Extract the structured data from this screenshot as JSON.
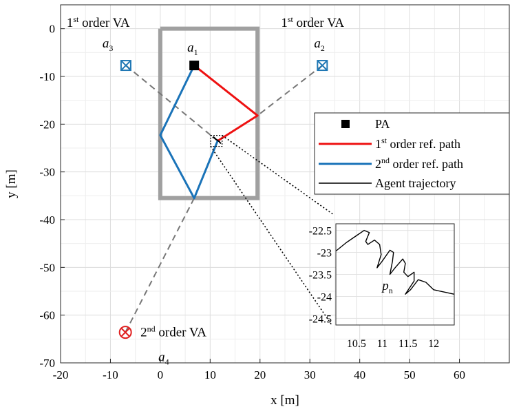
{
  "chart_data": {
    "type": "line",
    "xlabel": "x [m]",
    "ylabel": "y [m]",
    "xlim": [
      -20,
      70
    ],
    "ylim": [
      -70,
      5
    ],
    "xticks": [
      -20,
      -10,
      0,
      10,
      20,
      30,
      40,
      50,
      60
    ],
    "yticks": [
      0,
      -10,
      -20,
      -30,
      -40,
      -50,
      -60,
      -70
    ],
    "grid": true,
    "legend_position": "right",
    "room_outline": {
      "x": [
        0,
        19.5,
        19.5,
        0,
        0
      ],
      "y": [
        0,
        0,
        -35.5,
        -35.5,
        0
      ],
      "color": "#a0a0a0"
    },
    "anchors": [
      {
        "id": "a1",
        "label_base": "a",
        "label_sub": "1",
        "x": 6.8,
        "y": -7.7,
        "marker": "square",
        "color": "#000000"
      },
      {
        "id": "a2",
        "label_base": "a",
        "label_sub": "2",
        "x": 32.5,
        "y": -7.7,
        "marker": "boxed-x",
        "color": "#1f77b4"
      },
      {
        "id": "a3",
        "label_base": "a",
        "label_sub": "3",
        "x": -6.9,
        "y": -7.7,
        "marker": "boxed-x",
        "color": "#1f77b4"
      },
      {
        "id": "a4",
        "label_base": "a",
        "label_sub": "4",
        "x": -7.0,
        "y": -63.6,
        "marker": "circled-x",
        "color": "#e02020"
      }
    ],
    "va_labels": [
      {
        "prefix": "1",
        "sup": "st",
        "rest": " order VA",
        "near": "a3"
      },
      {
        "prefix": "1",
        "sup": "st",
        "rest": " order VA",
        "near": "a2"
      },
      {
        "prefix": "2",
        "sup": "nd",
        "rest": " order VA",
        "near": "a4"
      }
    ],
    "series": [
      {
        "name_prefix": "1",
        "name_sup": "st",
        "name_rest": " order ref. path",
        "color": "#ee1111",
        "x": [
          6.8,
          19.5,
          11.5
        ],
        "y": [
          -7.7,
          -18.2,
          -23.5
        ]
      },
      {
        "name_prefix": "2",
        "name_sup": "nd",
        "name_rest": " order ref. path",
        "color": "#1a73b8",
        "x": [
          6.8,
          0.0,
          6.8,
          11.5
        ],
        "y": [
          -7.7,
          -22.3,
          -35.5,
          -23.5
        ]
      },
      {
        "name": "Agent trajectory",
        "color": "#000000",
        "x": [
          10.5,
          10.7,
          11.0,
          11.2,
          11.4,
          11.6,
          11.8,
          12.0,
          12.2
        ],
        "y": [
          -22.9,
          -22.7,
          -23.0,
          -23.2,
          -23.3,
          -23.5,
          -23.6,
          -23.9,
          -24.0
        ]
      }
    ],
    "dashed_lines": [
      {
        "x": [
          -6.9,
          11.5
        ],
        "y": [
          -7.7,
          -23.5
        ]
      },
      {
        "x": [
          32.5,
          19.5
        ],
        "y": [
          -7.7,
          -18.2
        ]
      },
      {
        "x": [
          -7.0,
          6.8
        ],
        "y": [
          -63.6,
          -35.5
        ]
      }
    ],
    "legend": {
      "pa_label": "PA"
    },
    "inset": {
      "xlim": [
        10.1,
        12.4
      ],
      "ylim": [
        -24.65,
        -22.35
      ],
      "xticks": [
        10.5,
        11,
        11.5,
        12
      ],
      "xtick_labels": [
        "10.5",
        "11",
        "11.5",
        "12"
      ],
      "yticks": [
        -22.5,
        -23,
        -23.5,
        -24,
        -24.5
      ],
      "ytick_labels": [
        "-22.5",
        "-23",
        "-23.5",
        "-24",
        "-24.5"
      ],
      "point_label_base": "p",
      "point_label_sub": "n",
      "trajectory": {
        "x": [
          10.1,
          10.3,
          10.5,
          10.65,
          10.75,
          10.68,
          10.72,
          10.85,
          10.95,
          10.98,
          10.9,
          11.0,
          11.15,
          11.22,
          11.2,
          11.15,
          11.25,
          11.4,
          11.45,
          11.42,
          11.5,
          11.62,
          11.62,
          11.45,
          11.55,
          11.7,
          11.85,
          12.0,
          12.2,
          12.4
        ],
        "y": [
          -22.97,
          -22.78,
          -22.62,
          -22.5,
          -22.55,
          -22.75,
          -22.82,
          -22.72,
          -22.82,
          -23.05,
          -23.35,
          -23.2,
          -22.95,
          -23.0,
          -23.2,
          -23.5,
          -23.35,
          -23.15,
          -23.25,
          -23.45,
          -23.55,
          -23.45,
          -23.65,
          -23.95,
          -23.85,
          -23.62,
          -23.68,
          -23.85,
          -23.9,
          -23.95
        ]
      }
    }
  }
}
